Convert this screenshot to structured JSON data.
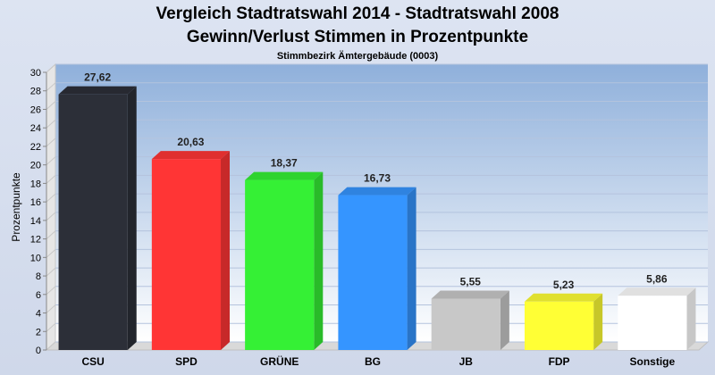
{
  "chart_data": {
    "type": "bar",
    "title": "Vergleich Stadtratswahl 2014 - Stadtratswahl 2008",
    "title2": "Gewinn/Verlust Stimmen in Prozentpunkte",
    "subtitle": "Stimmbezirk Ämtergebäude (0003)",
    "ylabel": "Prozentpunkte",
    "xlabel": "",
    "ylim": [
      0,
      30
    ],
    "ytick_step": 2,
    "grid": true,
    "legend": "none",
    "categories": [
      "CSU",
      "SPD",
      "GRÜNE",
      "BG",
      "JB",
      "FDP",
      "Sonstige"
    ],
    "values": [
      27.62,
      20.63,
      18.37,
      16.73,
      5.55,
      5.23,
      5.86
    ],
    "value_labels": [
      "27,62",
      "20,63",
      "18,37",
      "16,73",
      "5,55",
      "5,23",
      "5,86"
    ],
    "colors": [
      "#2c2f38",
      "#ff3535",
      "#35f035",
      "#3595ff",
      "#c8c8c8",
      "#ffff35",
      "#ffffff"
    ]
  }
}
